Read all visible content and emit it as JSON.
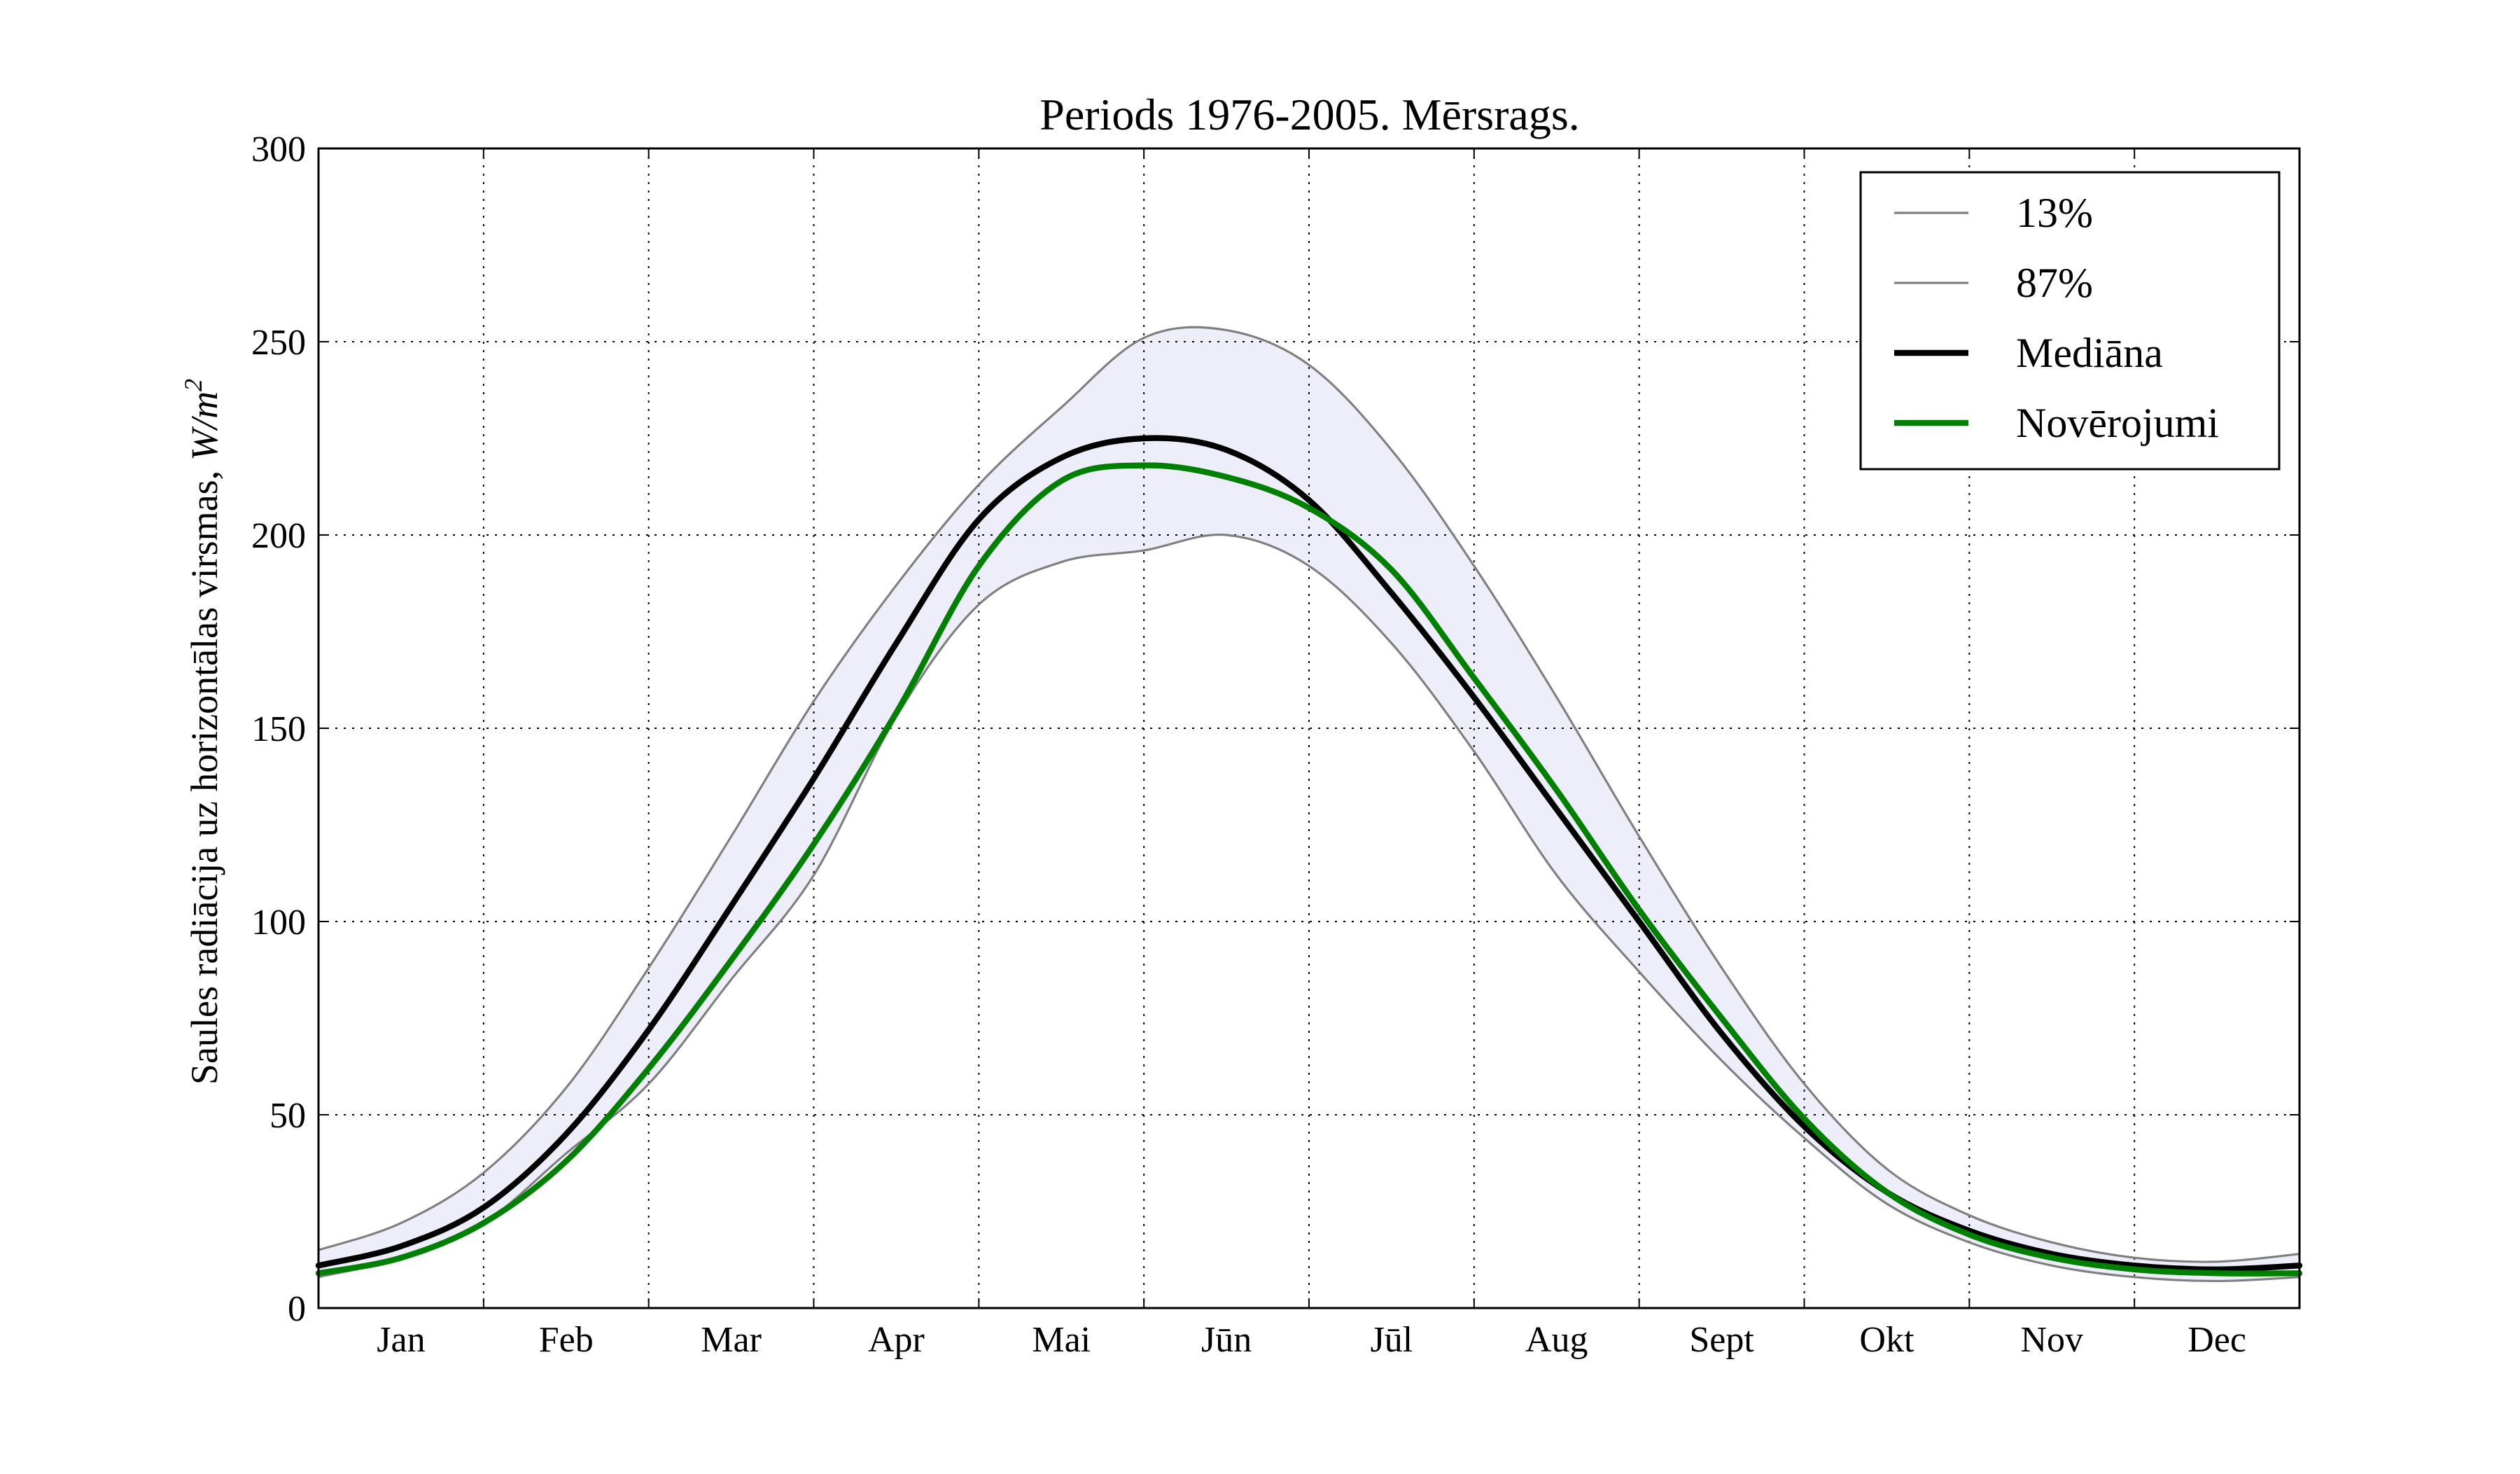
{
  "chart_data": {
    "type": "line",
    "title": "Periods 1976-2005. Mērsrags.",
    "ylabel_text": "Saules radiācija uz horizontālas virsmas,",
    "ylabel_unit_base": "W/m",
    "ylabel_unit_exp": "2",
    "xlabel": "",
    "ylim": [
      0,
      300
    ],
    "y_ticks": [
      0,
      50,
      100,
      150,
      200,
      250,
      300
    ],
    "x_tick_labels": [
      "Jan",
      "Feb",
      "Mar",
      "Apr",
      "Mai",
      "Jūn",
      "Jūl",
      "Aug",
      "Sept",
      "Okt",
      "Nov",
      "Dec"
    ],
    "grid": true,
    "legend_position": "top-right",
    "shaded_band": {
      "between": [
        "13%",
        "87%"
      ],
      "color": "#eeeefb"
    },
    "x": [
      0,
      0.5,
      1,
      1.5,
      2,
      2.5,
      3,
      3.5,
      4,
      4.5,
      5,
      5.5,
      6,
      6.5,
      7,
      7.5,
      8,
      8.5,
      9,
      9.5,
      10,
      10.5,
      11,
      11.5,
      12
    ],
    "series": [
      {
        "name": "13%",
        "color": "#7f7f7f",
        "width": 1.5,
        "values": [
          8,
          13,
          22,
          40,
          58,
          85,
          112,
          153,
          182,
          193,
          196,
          200,
          192,
          172,
          144,
          112,
          87,
          64,
          44,
          27,
          17,
          11,
          8,
          7,
          8
        ]
      },
      {
        "name": "87%",
        "color": "#7f7f7f",
        "width": 1.5,
        "values": [
          15,
          22,
          35,
          57,
          88,
          122,
          157,
          187,
          213,
          233,
          251,
          253,
          244,
          222,
          192,
          158,
          122,
          88,
          58,
          36,
          24,
          17,
          13,
          12,
          14
        ]
      },
      {
        "name": "Mediāna",
        "color": "#000000",
        "width": 4,
        "values": [
          11,
          16,
          26,
          45,
          72,
          104,
          137,
          172,
          204,
          220,
          225,
          222,
          209,
          185,
          158,
          129,
          100,
          71,
          47,
          30,
          20,
          14,
          11,
          10,
          11
        ]
      },
      {
        "name": "Novērojumi",
        "color": "#008000",
        "width": 4,
        "values": [
          9,
          13,
          22,
          38,
          62,
          90,
          120,
          154,
          192,
          214,
          218,
          215,
          207,
          191,
          163,
          134,
          103,
          75,
          49,
          30,
          19,
          13,
          10,
          9,
          9
        ]
      }
    ]
  }
}
